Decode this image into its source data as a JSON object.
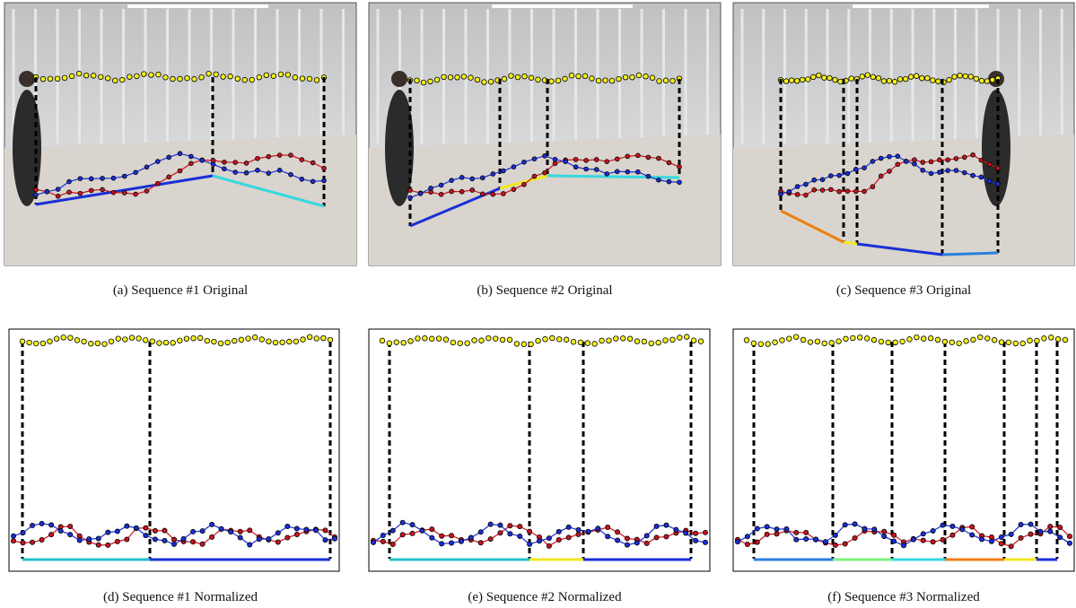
{
  "captions": [
    "(a)  Sequence #1 Original",
    "(b)  Sequence #2 Original",
    "(c)  Sequence #3 Original",
    "(d)  Sequence #1 Normalized",
    "(e)  Sequence #2 Normalized",
    "(f)  Sequence #3 Normalized"
  ]
}
